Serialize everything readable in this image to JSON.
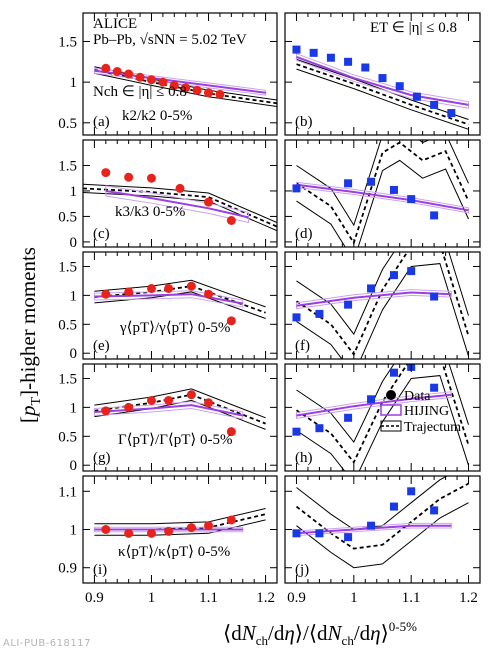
{
  "colors": {
    "data_left": "#e8231c",
    "data_right": "#1a39e6",
    "hijing": "#9b3fe0",
    "hijing_light": "#c9a3f0",
    "trajectum": "#000000"
  },
  "header": {
    "experiment": "ALICE",
    "system": "Pb–Pb, √sNN = 5.02 TeV",
    "left_estimator": "Nch ∈ |η| ≤ 0.8",
    "right_estimator": "ET ∈ |η| ≤ 0.8"
  },
  "axes": {
    "x_title": "⟨dNch/dη⟩/⟨dNch/dη⟩0-5%",
    "y_title": "[pT]-higher moments",
    "left_x_ticks": [
      "0.9",
      "1",
      "1.1",
      "1.2"
    ],
    "right_x_ticks": [
      "0.9",
      "1",
      "1.1",
      "1.2"
    ]
  },
  "legend": {
    "data": "Data",
    "hijing": "HIJING",
    "trajectum": "Trajectum"
  },
  "footer": "ALI-PUB-618117",
  "chart_data": [
    {
      "type": "scatter",
      "panel": "a",
      "label": "(a)",
      "observable": "k2/k2 0-5%",
      "estimator": "Nch",
      "xlim": [
        0.88,
        1.22
      ],
      "ylim": [
        0.35,
        1.85
      ],
      "y_ticks": [
        "0.5",
        "1",
        "1.5"
      ],
      "y_tick_values": [
        0.5,
        1,
        1.5
      ],
      "data": {
        "x": [
          0.92,
          0.94,
          0.96,
          0.98,
          1.0,
          1.02,
          1.04,
          1.06,
          1.08,
          1.1,
          1.12
        ],
        "y": [
          1.17,
          1.13,
          1.1,
          1.06,
          1.03,
          1.0,
          0.96,
          0.93,
          0.9,
          0.87,
          0.85
        ]
      },
      "hijing": {
        "x": [
          0.9,
          1.2
        ],
        "y": [
          1.14,
          0.87
        ],
        "band": 0.03
      },
      "trajectum": {
        "x": [
          0.9,
          1.0,
          1.1,
          1.22
        ],
        "y": [
          1.15,
          1.0,
          0.86,
          0.74
        ],
        "band": 0.04
      }
    },
    {
      "type": "scatter",
      "panel": "b",
      "label": "(b)",
      "observable": "k2/k2 0-5%",
      "estimator": "ET",
      "xlim": [
        0.88,
        1.22
      ],
      "ylim": [
        0.35,
        1.85
      ],
      "y_ticks": [],
      "y_tick_values": [
        0.5,
        1,
        1.5
      ],
      "data": {
        "x": [
          0.9,
          0.93,
          0.96,
          0.99,
          1.02,
          1.05,
          1.08,
          1.11,
          1.14,
          1.17
        ],
        "y": [
          1.4,
          1.36,
          1.3,
          1.25,
          1.18,
          1.05,
          0.95,
          0.82,
          0.72,
          0.62
        ]
      },
      "hijing": {
        "x": [
          0.9,
          1.0,
          1.1,
          1.2
        ],
        "y": [
          1.31,
          1.05,
          0.84,
          0.72
        ],
        "band": 0.04
      },
      "trajectum": {
        "x": [
          0.9,
          1.0,
          1.1,
          1.2
        ],
        "y": [
          1.22,
          0.98,
          0.72,
          0.48
        ],
        "band": 0.06
      }
    },
    {
      "type": "scatter",
      "panel": "c",
      "label": "(c)",
      "observable": "k3/k3 0-5%",
      "estimator": "Nch",
      "xlim": [
        0.88,
        1.22
      ],
      "ylim": [
        -0.1,
        2.0
      ],
      "y_ticks": [
        "0",
        "0.5",
        "1",
        "1.5"
      ],
      "y_tick_values": [
        0,
        0.5,
        1,
        1.5
      ],
      "data": {
        "x": [
          0.92,
          0.96,
          1.0,
          1.05,
          1.1,
          1.14
        ],
        "y": [
          1.36,
          1.27,
          1.25,
          1.05,
          0.78,
          0.42
        ]
      },
      "hijing": {
        "x": [
          0.92,
          1.0,
          1.1,
          1.17
        ],
        "y": [
          1.0,
          0.86,
          0.66,
          0.48
        ],
        "band": 0.1
      },
      "trajectum": {
        "x": [
          0.88,
          1.0,
          1.1,
          1.22
        ],
        "y": [
          1.05,
          0.98,
          0.88,
          0.3
        ],
        "band": 0.08
      }
    },
    {
      "type": "scatter",
      "panel": "d",
      "label": "(d)",
      "observable": "k3/k3 0-5%",
      "estimator": "ET",
      "xlim": [
        0.88,
        1.22
      ],
      "ylim": [
        -0.1,
        2.0
      ],
      "y_ticks": [],
      "y_tick_values": [
        0,
        0.5,
        1,
        1.5
      ],
      "data": {
        "x": [
          0.9,
          0.99,
          1.03,
          1.07,
          1.1,
          1.14
        ],
        "y": [
          1.05,
          1.15,
          1.18,
          1.02,
          0.84,
          0.52
        ]
      },
      "hijing": {
        "x": [
          0.9,
          1.0,
          1.1,
          1.2
        ],
        "y": [
          1.12,
          0.98,
          0.82,
          0.62
        ],
        "band": 0.05
      },
      "trajectum": {
        "x": [
          0.9,
          0.96,
          1.0,
          1.05,
          1.08,
          1.12,
          1.16,
          1.2
        ],
        "y": [
          1.15,
          0.7,
          -0.02,
          1.75,
          1.95,
          1.6,
          1.78,
          0.8
        ],
        "band": 0.35
      }
    },
    {
      "type": "scatter",
      "panel": "e",
      "label": "(e)",
      "observable": "γ⟨pT⟩/γ⟨pT⟩ 0-5%",
      "estimator": "Nch",
      "xlim": [
        0.88,
        1.22
      ],
      "ylim": [
        -0.1,
        1.75
      ],
      "y_ticks": [
        "0",
        "0.5",
        "1",
        "1.5"
      ],
      "y_tick_values": [
        0,
        0.5,
        1,
        1.5
      ],
      "data": {
        "x": [
          0.92,
          0.96,
          1.0,
          1.03,
          1.07,
          1.1,
          1.14
        ],
        "y": [
          1.02,
          1.06,
          1.12,
          1.12,
          1.16,
          1.02,
          0.56
        ]
      },
      "hijing": {
        "x": [
          0.9,
          1.0,
          1.07,
          1.16
        ],
        "y": [
          0.98,
          1.0,
          1.02,
          0.86
        ],
        "band": 0.06
      },
      "trajectum": {
        "x": [
          0.9,
          1.0,
          1.07,
          1.2
        ],
        "y": [
          0.97,
          1.06,
          1.16,
          0.7
        ],
        "band": 0.1
      }
    },
    {
      "type": "scatter",
      "panel": "f",
      "label": "(f)",
      "observable": "γ⟨pT⟩/γ⟨pT⟩ 0-5%",
      "estimator": "ET",
      "xlim": [
        0.88,
        1.22
      ],
      "ylim": [
        -0.1,
        1.75
      ],
      "y_ticks": [],
      "y_tick_values": [
        0,
        0.5,
        1,
        1.5
      ],
      "data": {
        "x": [
          0.9,
          0.94,
          0.99,
          1.03,
          1.07,
          1.1,
          1.14
        ],
        "y": [
          0.62,
          0.68,
          0.84,
          1.12,
          1.35,
          1.42,
          0.98
        ]
      },
      "hijing": {
        "x": [
          0.9,
          1.0,
          1.1,
          1.17
        ],
        "y": [
          0.82,
          0.96,
          1.05,
          1.02
        ],
        "band": 0.05
      },
      "trajectum": {
        "x": [
          0.9,
          0.96,
          1.0,
          1.05,
          1.1,
          1.15,
          1.2
        ],
        "y": [
          0.9,
          0.5,
          -0.02,
          1.1,
          1.85,
          1.9,
          0.3
        ],
        "band": 0.35
      }
    },
    {
      "type": "scatter",
      "panel": "g",
      "label": "(g)",
      "observable": "Γ⟨pT⟩/Γ⟨pT⟩ 0-5%",
      "estimator": "Nch",
      "xlim": [
        0.88,
        1.22
      ],
      "ylim": [
        -0.1,
        1.75
      ],
      "y_ticks": [
        "0",
        "0.5",
        "1",
        "1.5"
      ],
      "y_tick_values": [
        0,
        0.5,
        1,
        1.5
      ],
      "data": {
        "x": [
          0.92,
          0.96,
          1.0,
          1.03,
          1.07,
          1.1,
          1.14
        ],
        "y": [
          0.94,
          1.0,
          1.12,
          1.12,
          1.22,
          1.08,
          0.58
        ]
      },
      "hijing": {
        "x": [
          0.9,
          1.0,
          1.07,
          1.16
        ],
        "y": [
          0.92,
          0.98,
          1.04,
          0.86
        ],
        "band": 0.06
      },
      "trajectum": {
        "x": [
          0.9,
          1.0,
          1.07,
          1.2
        ],
        "y": [
          0.94,
          1.08,
          1.22,
          0.72
        ],
        "band": 0.1
      }
    },
    {
      "type": "scatter",
      "panel": "h",
      "label": "(h)",
      "observable": "Γ⟨pT⟩/Γ⟨pT⟩ 0-5%",
      "estimator": "ET",
      "xlim": [
        0.88,
        1.22
      ],
      "ylim": [
        -0.1,
        1.75
      ],
      "y_ticks": [],
      "y_tick_values": [
        0,
        0.5,
        1,
        1.5
      ],
      "data": {
        "x": [
          0.9,
          0.94,
          0.99,
          1.03,
          1.07,
          1.1,
          1.14
        ],
        "y": [
          0.58,
          0.64,
          0.82,
          1.14,
          1.6,
          1.7,
          1.34
        ]
      },
      "hijing": {
        "x": [
          0.9,
          1.0,
          1.1,
          1.17
        ],
        "y": [
          0.86,
          1.02,
          1.15,
          1.22
        ],
        "band": 0.05
      },
      "trajectum": {
        "x": [
          0.9,
          0.96,
          1.0,
          1.05,
          1.1,
          1.15,
          1.2
        ],
        "y": [
          0.95,
          0.55,
          0.05,
          1.1,
          1.85,
          1.9,
          0.35
        ],
        "band": 0.35
      }
    },
    {
      "type": "scatter",
      "panel": "i",
      "label": "(i)",
      "observable": "κ⟨pT⟩/κ⟨pT⟩ 0-5%",
      "estimator": "Nch",
      "xlim": [
        0.88,
        1.22
      ],
      "ylim": [
        0.86,
        1.14
      ],
      "y_ticks": [
        "0.9",
        "1",
        "1.1"
      ],
      "y_tick_values": [
        0.9,
        1.0,
        1.1
      ],
      "data": {
        "x": [
          0.92,
          0.96,
          1.0,
          1.03,
          1.07,
          1.1,
          1.14
        ],
        "y": [
          1.0,
          0.99,
          0.99,
          0.995,
          1.005,
          1.01,
          1.025
        ]
      },
      "hijing": {
        "x": [
          0.9,
          1.0,
          1.07,
          1.16
        ],
        "y": [
          1.0,
          1.0,
          1.0,
          1.0
        ],
        "band": 0.006
      },
      "trajectum": {
        "x": [
          0.9,
          1.0,
          1.1,
          1.2
        ],
        "y": [
          1.0,
          1.0,
          1.005,
          1.04
        ],
        "band": 0.015
      }
    },
    {
      "type": "scatter",
      "panel": "j",
      "label": "(j)",
      "observable": "κ⟨pT⟩/κ⟨pT⟩ 0-5%",
      "estimator": "ET",
      "xlim": [
        0.88,
        1.22
      ],
      "ylim": [
        0.86,
        1.14
      ],
      "y_ticks": [],
      "y_tick_values": [
        0.9,
        1.0,
        1.1
      ],
      "data": {
        "x": [
          0.9,
          0.94,
          0.99,
          1.03,
          1.07,
          1.1,
          1.14
        ],
        "y": [
          0.99,
          0.99,
          0.98,
          1.01,
          1.06,
          1.1,
          1.05
        ]
      },
      "hijing": {
        "x": [
          0.9,
          1.0,
          1.1,
          1.17
        ],
        "y": [
          0.99,
          1.0,
          1.01,
          1.01
        ],
        "band": 0.006
      },
      "trajectum": {
        "x": [
          0.9,
          0.96,
          1.0,
          1.05,
          1.1,
          1.15,
          1.2
        ],
        "y": [
          1.06,
          0.99,
          0.95,
          0.96,
          1.02,
          1.08,
          1.12
        ],
        "band": 0.05
      }
    }
  ]
}
